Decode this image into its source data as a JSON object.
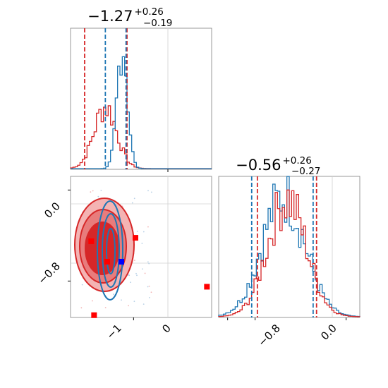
{
  "chart_data": {
    "type": "corner",
    "parameters": [
      {
        "title": {
          "median": "−1.27",
          "plus": "+0.26",
          "minus": "−0.19"
        },
        "range": [
          -1.67,
          -0.17
        ],
        "ticks": [
          {
            "value": -1.0,
            "label": "−1"
          },
          {
            "value": 0.0,
            "label": "0"
          }
        ],
        "quantile_lines": {
          "blue": [
            -1.3,
            -1.08
          ],
          "red": [
            -1.52,
            -1.07
          ]
        }
      },
      {
        "title": {
          "median": "−0.56",
          "plus": "+0.26",
          "minus": "−0.27"
        },
        "range": [
          -1.12,
          0.12
        ],
        "ticks": [
          {
            "value": -0.8,
            "label": "−0.8"
          },
          {
            "value": 0.0,
            "label": "0.0"
          }
        ],
        "quantile_lines": {
          "blue": [
            -0.83,
            -0.29
          ],
          "red": [
            -0.78,
            -0.26
          ]
        }
      }
    ],
    "series": [
      {
        "color": "#1f77b4",
        "marginal_1": {
          "mean": -1.12,
          "sd": 0.055
        },
        "marginal_2": {
          "mean": -0.55,
          "sd": 0.19
        },
        "point": {
          "x": -1.13,
          "y": -0.63
        }
      },
      {
        "color": "#d62728",
        "marginal_1": {
          "mean": -1.3,
          "sd": 0.12
        },
        "marginal_2": {
          "mean": -0.52,
          "sd": 0.17
        },
        "points": [
          {
            "x": -1.45,
            "y": -0.45
          },
          {
            "x": -1.28,
            "y": -0.63
          },
          {
            "x": -0.98,
            "y": -0.42
          },
          {
            "x": -1.42,
            "y": -1.1
          },
          {
            "x": -0.22,
            "y": -0.85
          }
        ]
      }
    ],
    "grid": true,
    "legend": "none"
  }
}
